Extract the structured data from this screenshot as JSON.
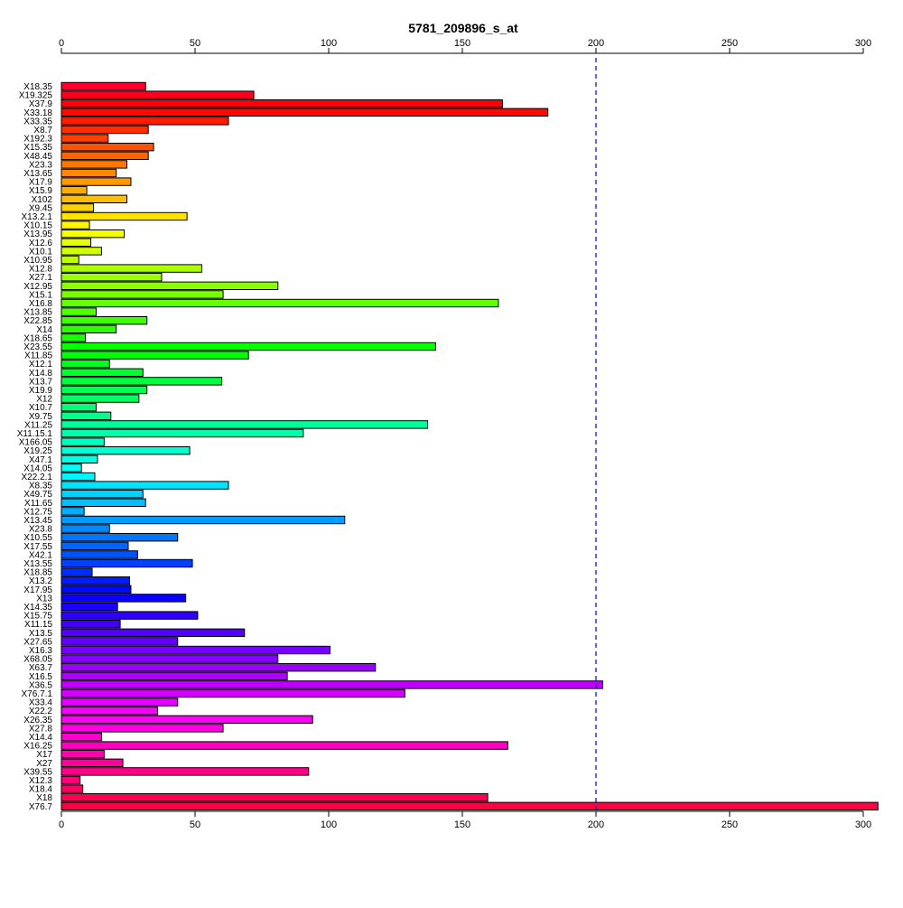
{
  "chart_data": {
    "type": "bar",
    "orientation": "horizontal",
    "title": "5781_209896_s_at",
    "xlabel": "",
    "ylabel": "",
    "xlim": [
      0,
      300
    ],
    "x_ticks": [
      0,
      50,
      100,
      150,
      200,
      250,
      300
    ],
    "tick_axes": [
      "top",
      "bottom"
    ],
    "reference_line": {
      "value": 200,
      "style": "dashed",
      "color": "#0000cc"
    },
    "grid": false,
    "legend": "none",
    "bar_colors": "rainbow (red → yellow → green → cyan → blue → magenta → red), one per bar",
    "categories": [
      "X18.35",
      "X19.325",
      "X37.9",
      "X33.18",
      "X33.35",
      "X8.7",
      "X192.3",
      "X15.35",
      "X48.45",
      "X23.3",
      "X13.65",
      "X17.9",
      "X15.9",
      "X102",
      "X9.45",
      "X13.2.1",
      "X10.15",
      "X13.95",
      "X12.6",
      "X10.1",
      "X10.95",
      "X12.8",
      "X27.1",
      "X12.95",
      "X15.1",
      "X16.8",
      "X13.85",
      "X22.85",
      "X14",
      "X18.65",
      "X23.55",
      "X11.85",
      "X12.1",
      "X14.8",
      "X13.7",
      "X19.9",
      "X12",
      "X10.7",
      "X9.75",
      "X11.25",
      "X11.15.1",
      "X166.05",
      "X19.25",
      "X47.1",
      "X14.05",
      "X22.2.1",
      "X8.35",
      "X49.75",
      "X11.65",
      "X12.75",
      "X13.45",
      "X23.8",
      "X10.55",
      "X17.55",
      "X42.1",
      "X13.55",
      "X18.85",
      "X13.2",
      "X17.95",
      "X13",
      "X14.35",
      "X15.75",
      "X11.15",
      "X13.5",
      "X27.65",
      "X16.3",
      "X68.05",
      "X63.7",
      "X16.5",
      "X36.5",
      "X76.7.1",
      "X33.4",
      "X22.2",
      "X26.35",
      "X27.8",
      "X14.4",
      "X16.25",
      "X17",
      "X27",
      "X39.55",
      "X12.3",
      "X18.4",
      "X18",
      "X76.7"
    ],
    "values": [
      31.5,
      72,
      165,
      182,
      62.5,
      32.5,
      17.5,
      34.5,
      32.5,
      24.5,
      20.5,
      26,
      9.5,
      24.5,
      12,
      47,
      10.5,
      23.5,
      11,
      15,
      6.5,
      52.5,
      37.5,
      81,
      60.5,
      163.5,
      13,
      32,
      20.5,
      9,
      140,
      70,
      18,
      30.5,
      60,
      32,
      29,
      13,
      18.5,
      137,
      90.5,
      16,
      48,
      13.5,
      7.5,
      12.5,
      62.5,
      30.5,
      31.5,
      8.5,
      106,
      18,
      43.5,
      25,
      28.5,
      49,
      11.5,
      25.5,
      26,
      46.5,
      21,
      51,
      22,
      68.5,
      43.5,
      100.5,
      81,
      117.5,
      84.5,
      202.5,
      128.5,
      43.5,
      36,
      94,
      60.5,
      15,
      167,
      16,
      23,
      92.5,
      7,
      8,
      159.5,
      305.5
    ]
  }
}
